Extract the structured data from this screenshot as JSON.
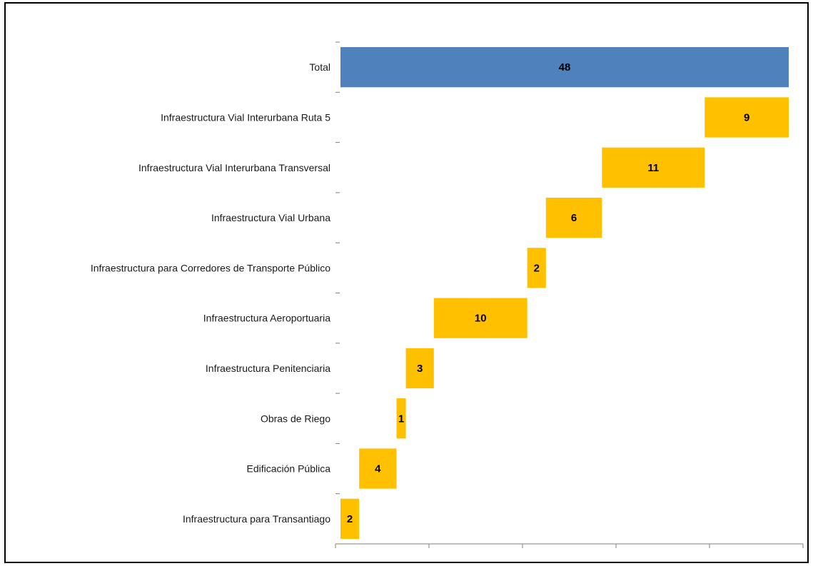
{
  "chart_data": {
    "type": "bar",
    "orientation": "horizontal",
    "subtype": "waterfall",
    "title": "",
    "xlabel": "",
    "ylabel": "",
    "xlim": [
      0,
      48
    ],
    "grid": false,
    "legend": "none",
    "categories": [
      "Total",
      "Infraestructura Vial Interurbana Ruta 5",
      "Infraestructura Vial Interurbana Transversal",
      "Infraestructura Vial Urbana",
      "Infraestructura para Corredores de Transporte Público",
      "Infraestructura Aeroportuaria",
      "Infraestructura Penitenciaria",
      "Obras de Riego",
      "Edificación Pública",
      "Infraestructura para Transantiago"
    ],
    "values": [
      48,
      9,
      11,
      6,
      2,
      10,
      3,
      1,
      4,
      2
    ],
    "bar_starts": [
      0,
      39,
      28,
      22,
      20,
      10,
      7,
      6,
      2,
      0
    ],
    "colors": {
      "total": "#4f81bd",
      "component": "#ffc000"
    }
  }
}
